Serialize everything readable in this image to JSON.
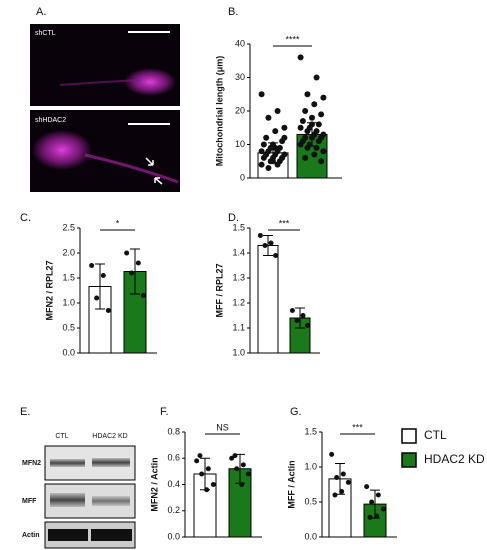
{
  "panel_a": {
    "label": "A.",
    "top_caption": "shCTL",
    "bottom_caption": "shHDAC2"
  },
  "panel_e": {
    "label": "E.",
    "columns": [
      "CTL",
      "HDAC2 KD"
    ],
    "rows": [
      "MFN2",
      "MFF",
      "Actin"
    ]
  },
  "legend": {
    "names": [
      "CTL",
      "HDAC2 KD"
    ],
    "colors": [
      "#ffffff",
      "#1a7a1a"
    ]
  },
  "chart_data": [
    {
      "type": "bar",
      "panel": "B.",
      "ylabel": "Mitochondrial length (μm)",
      "ylim": [
        0,
        40
      ],
      "yticks": [
        0,
        10,
        20,
        30,
        40
      ],
      "values": [
        7.5,
        13
      ],
      "errors": [
        3,
        3.5
      ],
      "colors": [
        "#ffffff",
        "#1a7a1a"
      ],
      "significance": "****",
      "points": [
        [
          25,
          20,
          18,
          15,
          14,
          12,
          11,
          10,
          10,
          9,
          9,
          8,
          8,
          8,
          7,
          7,
          7,
          6,
          6,
          6,
          5,
          5,
          4,
          4,
          3,
          12,
          9,
          7,
          6,
          5
        ],
        [
          36,
          30,
          25,
          24,
          22,
          20,
          19,
          18,
          17,
          16,
          15,
          15,
          14,
          14,
          13,
          13,
          12,
          12,
          12,
          11,
          11,
          10,
          10,
          9,
          9,
          8,
          7,
          6,
          5,
          16
        ]
      ]
    },
    {
      "type": "bar",
      "panel": "C.",
      "ylabel": "MFN2 / RPL27",
      "ylim": [
        0,
        2.5
      ],
      "yticks": [
        {
          "value": 0,
          "label": "0.0"
        },
        0.5,
        {
          "value": 1,
          "label": "1.0"
        },
        1.5,
        {
          "value": 2,
          "label": "2.0"
        },
        2.5
      ],
      "values": [
        1.33,
        1.63
      ],
      "errors": [
        0.45,
        0.45
      ],
      "colors": [
        "#ffffff",
        "#1a7a1a"
      ],
      "significance": "*",
      "points": [
        [
          1.75,
          1.55,
          1.1,
          0.85
        ],
        [
          2.0,
          1.8,
          1.6,
          1.15
        ]
      ]
    },
    {
      "type": "bar",
      "panel": "D.",
      "ylabel": "MFF / RPL27",
      "ylim": [
        1,
        1.5
      ],
      "yticks": [
        {
          "value": 1,
          "label": "1.0"
        },
        1.1,
        1.2,
        1.3,
        1.4,
        {
          "value": 1.5,
          "label": "1.5"
        }
      ],
      "values": [
        1.43,
        1.14
      ],
      "errors": [
        0.04,
        0.04
      ],
      "colors": [
        "#ffffff",
        "#1a7a1a"
      ],
      "significance": "***",
      "points": [
        [
          1.47,
          1.44,
          1.43,
          1.39
        ],
        [
          1.17,
          1.15,
          1.13,
          1.11
        ]
      ]
    },
    {
      "type": "bar",
      "panel": "F.",
      "ylabel": "MFN2 / Actin",
      "ylim": [
        0,
        0.8
      ],
      "yticks": [
        {
          "value": 0,
          "label": "0.0"
        },
        0.2,
        0.4,
        0.6,
        0.8
      ],
      "values": [
        0.48,
        0.52
      ],
      "errors": [
        0.12,
        0.11
      ],
      "colors": [
        "#ffffff",
        "#1a7a1a"
      ],
      "significance": "NS",
      "points": [
        [
          0.58,
          0.52,
          0.48,
          0.4,
          0.36,
          0.62
        ],
        [
          0.6,
          0.55,
          0.52,
          0.48,
          0.4,
          0.62
        ]
      ]
    },
    {
      "type": "bar",
      "panel": "G.",
      "ylabel": "MFF / Actin",
      "ylim": [
        0,
        1.5
      ],
      "yticks": [
        {
          "value": 0,
          "label": "0.0"
        },
        0.5,
        {
          "value": 1,
          "label": "1.0"
        },
        1.5
      ],
      "values": [
        0.83,
        0.47
      ],
      "errors": [
        0.22,
        0.2
      ],
      "colors": [
        "#ffffff",
        "#1a7a1a"
      ],
      "significance": "***",
      "points": [
        [
          1.18,
          0.9,
          0.85,
          0.78,
          0.65,
          0.6
        ],
        [
          0.72,
          0.6,
          0.5,
          0.4,
          0.3,
          0.28
        ]
      ]
    }
  ]
}
